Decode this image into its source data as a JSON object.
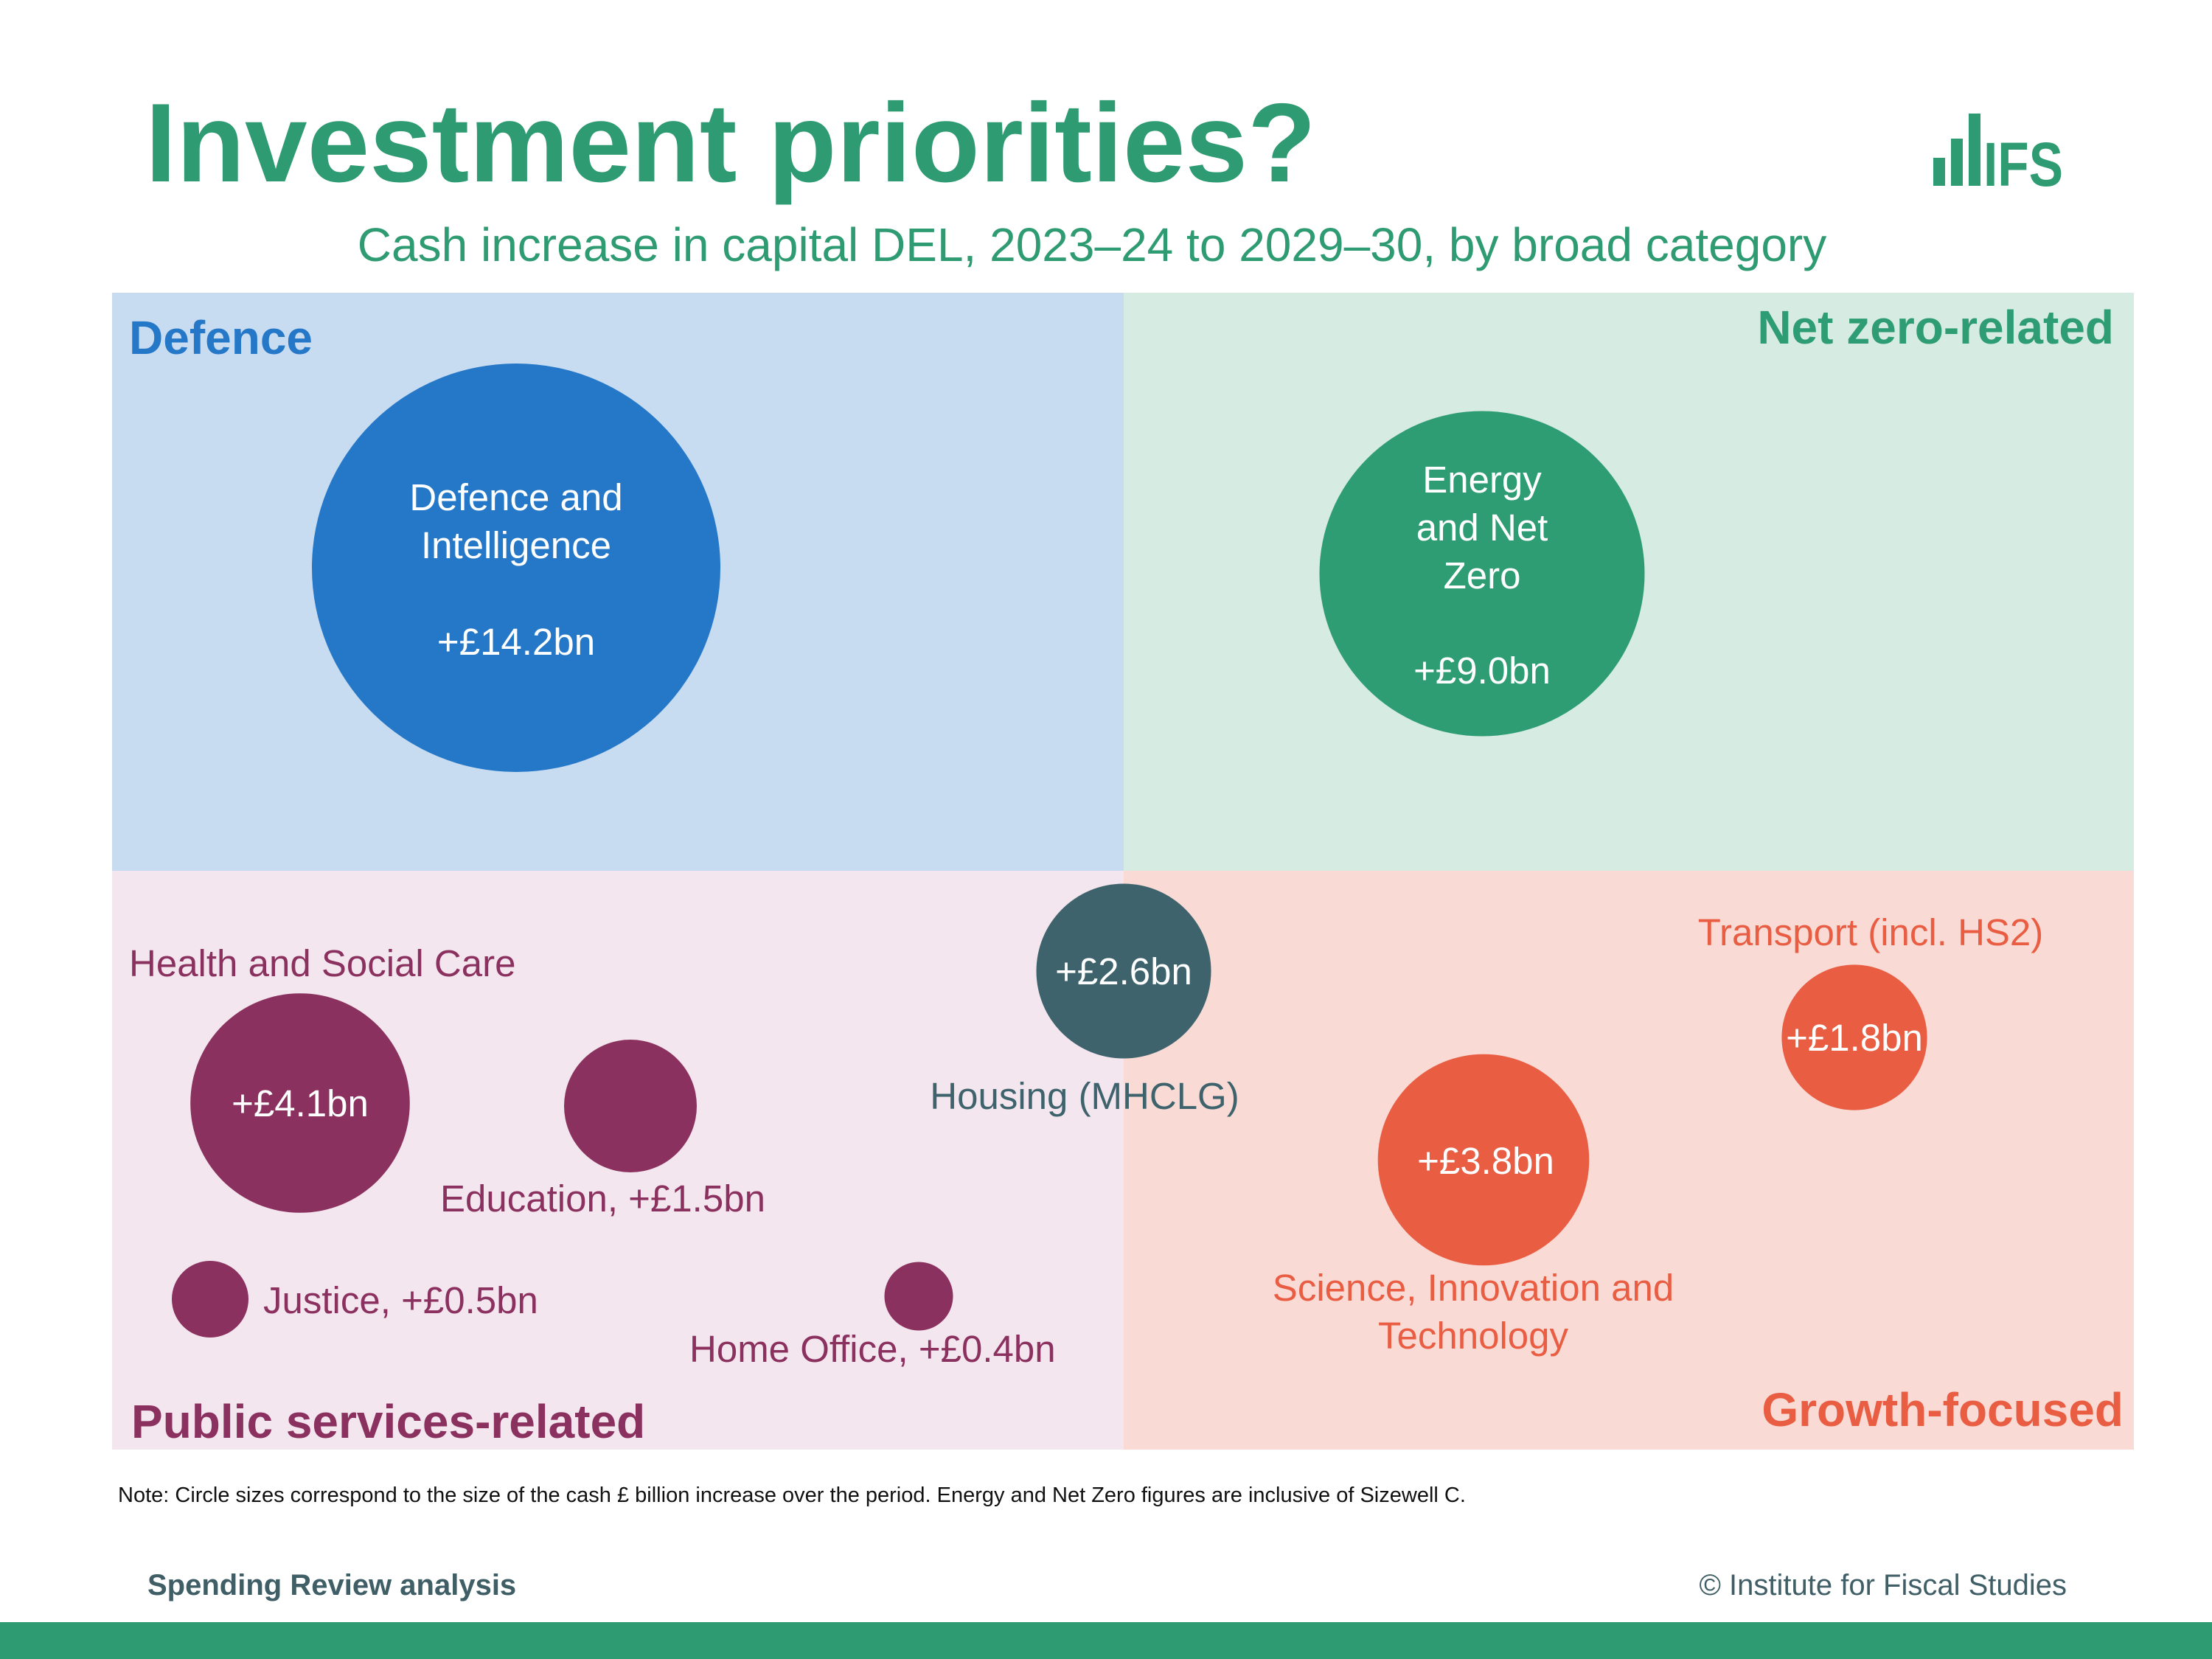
{
  "header": {
    "title": "Investment priorities?",
    "subtitle": "Cash increase in capital DEL, 2023–24 to 2029–30, by broad category",
    "logo_text": "IFS"
  },
  "quadrants": {
    "defence": "Defence",
    "net_zero": "Net zero-related",
    "public_services": "Public services-related",
    "growth": "Growth-focused"
  },
  "colors": {
    "brand_green": "#2e9b72",
    "defence": "#2577c8",
    "net_zero": "#2f9d73",
    "public_services": "#8b315f",
    "growth": "#e95d43",
    "housing": "#3e636c",
    "bubble_text": "#ffffff"
  },
  "chart_data": {
    "type": "bubble",
    "title": "Investment priorities?",
    "subtitle": "Cash increase in capital DEL, 2023–24 to 2029–30, by broad category",
    "unit": "£bn",
    "size_encoding": "circle area proportional to cash £ billion increase",
    "categories": [
      "Defence",
      "Net zero-related",
      "Public services-related",
      "Growth-focused"
    ],
    "items": [
      {
        "name": "Defence and Intelligence",
        "value": 14.2,
        "value_label": "+£14.2bn",
        "category": "Defence"
      },
      {
        "name": "Energy and Net Zero",
        "value": 9.0,
        "value_label": "+£9.0bn",
        "category": "Net zero-related"
      },
      {
        "name": "Health and Social Care",
        "value": 4.1,
        "value_label": "+£4.1bn",
        "category": "Public services-related"
      },
      {
        "name": "Education",
        "value": 1.5,
        "value_label": "Education, +£1.5bn",
        "category": "Public services-related"
      },
      {
        "name": "Justice",
        "value": 0.5,
        "value_label": "Justice, +£0.5bn",
        "category": "Public services-related"
      },
      {
        "name": "Home Office",
        "value": 0.4,
        "value_label": "Home Office, +£0.4bn",
        "category": "Public services-related"
      },
      {
        "name": "Housing (MHCLG)",
        "value": 2.6,
        "value_label": "+£2.6bn",
        "category": "Public services-related / Growth-focused"
      },
      {
        "name": "Science, Innovation and Technology",
        "value": 3.8,
        "value_label": "+£3.8bn",
        "category": "Growth-focused"
      },
      {
        "name": "Transport (incl. HS2)",
        "value": 1.8,
        "value_label": "+£1.8bn",
        "category": "Growth-focused"
      }
    ]
  },
  "labels": {
    "defence_name": [
      "Defence and",
      "Intelligence"
    ],
    "energy_name": [
      "Energy",
      "and Net",
      "Zero"
    ],
    "health_name": "Health and Social Care",
    "housing_name": "Housing (MHCLG)",
    "science_name": [
      "Science, Innovation and",
      "Technology"
    ],
    "transport_name": "Transport (incl. HS2)"
  },
  "footer": {
    "note": "Note: Circle sizes correspond to the size of the cash £ billion increase over the period. Energy and Net Zero figures are inclusive of Sizewell C.",
    "left": "Spending Review analysis",
    "right": "© Institute for Fiscal Studies"
  }
}
